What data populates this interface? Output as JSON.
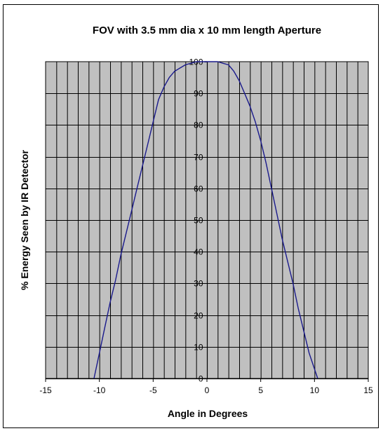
{
  "chart_data": {
    "type": "line",
    "title": "FOV with 3.5 mm dia x 10 mm length Aperture",
    "xlabel": "Angle in Degrees",
    "ylabel": "% Energy Seen by IR Detector",
    "xlim": [
      -15,
      15
    ],
    "ylim": [
      0,
      100
    ],
    "x_ticks": [
      "-15",
      "-10",
      "-5",
      "0",
      "5",
      "10",
      "15"
    ],
    "y_ticks": [
      "0",
      "10",
      "20",
      "30",
      "40",
      "50",
      "60",
      "70",
      "80",
      "90",
      "100"
    ],
    "grid": true,
    "legend": "none",
    "series": [
      {
        "color": "#1a1a8c",
        "x": [
          -10.5,
          -10,
          -9.5,
          -9,
          -8.5,
          -8,
          -7.5,
          -7,
          -6.5,
          -6,
          -5.5,
          -5,
          -4.5,
          -4,
          -3.5,
          -3,
          -2.5,
          -2,
          -1.5,
          -1,
          -0.5,
          0,
          0.5,
          1,
          1.5,
          2,
          2.5,
          3,
          3.5,
          4,
          4.5,
          5,
          5.5,
          6,
          6.5,
          7,
          7.5,
          8,
          8.5,
          9,
          9.5,
          10,
          10.3
        ],
        "y": [
          0,
          8,
          16,
          24,
          31,
          39,
          46,
          53,
          60,
          67,
          74,
          81,
          88,
          92,
          95,
          97,
          98,
          99,
          99.5,
          100,
          100,
          100,
          100,
          100,
          99.5,
          99,
          97,
          94,
          90,
          86,
          81,
          75,
          68,
          60,
          52,
          44,
          37,
          30,
          22,
          15,
          8,
          3,
          0
        ]
      }
    ],
    "colors": {
      "plot_background": "#c0c0c0",
      "grid": "#000000",
      "line": "#1a1a8c"
    }
  }
}
